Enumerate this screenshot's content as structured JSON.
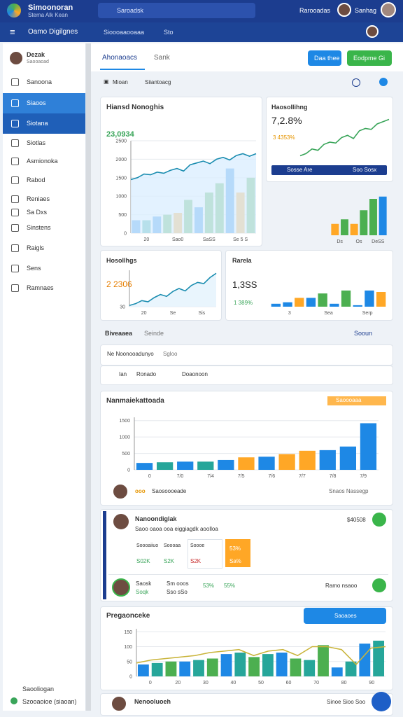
{
  "header": {
    "app_title": "Simoonoran",
    "app_subtitle": "Stema Alk Kean",
    "search": "Saroadsk",
    "user_menu": "Rarooadas",
    "user_name": "Sanhag"
  },
  "nav": {
    "title": "Oamo Digilgnes",
    "menu": "Sioooaaooaaa",
    "link": "Sto"
  },
  "sidebar": {
    "profile_name": "Dezak",
    "profile_role": "Saooaoad",
    "items": [
      "Sanoona",
      "Siaoos",
      "Siotana",
      "Siotlas",
      "Asmionoka",
      "Rabod",
      "Reniaes",
      "Sa Dxs",
      "Sinstens",
      "Raigls",
      "Sens",
      "Ramnaes"
    ],
    "footer": [
      "Saooliogan",
      "Szooaoioe (siaoan)"
    ]
  },
  "tabs": [
    "Ahonaoacs",
    "Sank"
  ],
  "buttons": [
    "Daa thee",
    "Eodpme Gi"
  ],
  "filters": [
    "Mioan",
    "Siiantoacg"
  ],
  "cards": [
    {
      "title": "Hiansd Nonoghis",
      "value": "23,0934",
      "chart": {
        "ylim": [
          0,
          2500
        ],
        "yticks": [
          0,
          500,
          1000,
          1500,
          2000,
          2500
        ],
        "xlabels": [
          "20",
          "Sao0",
          "SaSS",
          "Se 5 S"
        ],
        "line": [
          1450,
          1500,
          1600,
          1580,
          1650,
          1620,
          1700,
          1750,
          1680,
          1850,
          1900,
          1950,
          1880,
          2000,
          2050,
          1980,
          2100,
          2150,
          2080,
          2150
        ],
        "line_color": "#1b8db0",
        "area": "#dcefff",
        "bars": [
          350,
          350,
          450,
          500,
          550,
          900,
          700,
          1100,
          1350,
          1750,
          1100,
          1500
        ],
        "bar_colors": [
          "#1e88e5",
          "#26a69a",
          "#1e88e5",
          "#4caf50",
          "#ffa726",
          "#4caf50",
          "#1e88e5",
          "#4caf50",
          "#4caf50",
          "#1e88e5",
          "#ffa726",
          "#4caf50"
        ]
      }
    },
    {
      "title": "Haosollihng",
      "value": "7,2.8%",
      "change": "3 4353%",
      "footer": [
        "Sosse Are",
        "Soo Sosx"
      ],
      "chart": {
        "ylim": [
          0,
          100
        ],
        "line": [
          10,
          15,
          25,
          22,
          35,
          40,
          38,
          50,
          55,
          48,
          65,
          70,
          68,
          80,
          85,
          90
        ],
        "line_color": "#3aa55a"
      },
      "bars_chart": {
        "ylim": [
          0,
          100
        ],
        "xlabels": [
          "Ds",
          "Os",
          "DeSS"
        ],
        "bars": [
          25,
          35,
          25,
          55,
          80,
          85
        ],
        "bar_colors": [
          "#ffa726",
          "#4caf50",
          "#ffa726",
          "#4caf50",
          "#4caf50",
          "#1e88e5"
        ]
      }
    },
    {
      "title": "Hosollhgs",
      "value": "2 2306",
      "chart": {
        "ylim": [
          30,
          90
        ],
        "yticks": [
          30
        ],
        "xlabels": [
          "20",
          "Se",
          "Sis"
        ],
        "line": [
          32,
          35,
          40,
          38,
          45,
          50,
          47,
          55,
          60,
          56,
          65,
          70,
          68,
          78,
          85
        ],
        "line_color": "#1b8db0",
        "area": "#e3f2fd"
      }
    },
    {
      "title": "Rarela",
      "value": "1,3SS",
      "change": "1 389%",
      "chart": {
        "ylim": [
          0,
          100
        ],
        "xlabels": [
          "3",
          "Sea",
          "Serp"
        ],
        "bars": [
          10,
          15,
          30,
          30,
          45,
          10,
          55,
          5,
          55,
          50
        ],
        "bar_colors": [
          "#1e88e5",
          "#1e88e5",
          "#ffa726",
          "#1e88e5",
          "#4caf50",
          "#1e88e5",
          "#4caf50",
          "#1e88e5",
          "#1e88e5",
          "#ffa726"
        ]
      }
    }
  ],
  "section": {
    "title": "Biveaaea",
    "subtitle": "Seinde",
    "action": "Sooun",
    "breadcrumb": "Ne Noonooadunyo",
    "breadcrumb_sub": "Sgloo",
    "tools": [
      "Ian",
      "Ronado",
      "Doaonoon"
    ]
  },
  "panel": {
    "title": "Nanmaiekattoada",
    "tag": "Saoooaaa",
    "badge": "ooo",
    "footer": "Saosoooeade",
    "footer_right": "Snaos Nassegp",
    "chart": {
      "ylim": [
        0,
        1600
      ],
      "yticks": [
        0,
        500,
        1000,
        1500
      ],
      "xlabels": [
        "0",
        "7/0",
        "7/4",
        "7/5",
        "7/6",
        "7/7",
        "7/8",
        "7/9"
      ],
      "bars": [
        210,
        230,
        250,
        250,
        300,
        380,
        400,
        480,
        580,
        600,
        710,
        1420
      ],
      "bar_colors": [
        "#1e88e5",
        "#26a69a",
        "#1e88e5",
        "#26a69a",
        "#1e88e5",
        "#ffa726",
        "#1e88e5",
        "#ffa726",
        "#ffa726",
        "#1e88e5",
        "#1e88e5",
        "#1e88e5"
      ]
    }
  },
  "list": {
    "items": [
      {
        "title": "Nanoondiglak",
        "subtitle": "Saoo oaoa ooa eiggiagdk aoolloa",
        "amount": "$40508",
        "stats": [
          {
            "label": "Soooaiiuo",
            "value": "S02K"
          },
          {
            "label": "Soooaa",
            "value": "S2K"
          },
          {
            "label": "Soooe",
            "value": "S2K"
          },
          {
            "label": "53%",
            "value": "Sa%"
          }
        ]
      },
      {
        "cells": [
          "Saosk",
          "Soqk",
          "Sm ooos",
          "Sso sSo",
          "53%",
          "55%"
        ],
        "amount": "Ramo nsaoo"
      }
    ]
  },
  "trends": {
    "title": "Pregaonceke",
    "button": "Saoaoes",
    "chart": {
      "ylim": [
        0,
        160
      ],
      "yticks": [
        0,
        50,
        100,
        150
      ],
      "xlabels": [
        "0",
        "20",
        "30",
        "40",
        "50",
        "60",
        "70",
        "80",
        "90"
      ],
      "bars": [
        40,
        45,
        50,
        50,
        55,
        60,
        75,
        80,
        65,
        75,
        80,
        60,
        55,
        105,
        30,
        50,
        110,
        120
      ],
      "bar_colors": [
        "#1e88e5",
        "#26a69a",
        "#4caf50",
        "#1e88e5",
        "#26a69a",
        "#4caf50",
        "#1e88e5",
        "#26a69a",
        "#4caf50",
        "#26a69a",
        "#1e88e5",
        "#4caf50",
        "#26a69a",
        "#4caf50",
        "#1e88e5",
        "#26a69a",
        "#1e88e5",
        "#26a69a"
      ],
      "line": [
        45,
        55,
        60,
        65,
        70,
        80,
        85,
        90,
        70,
        85,
        90,
        70,
        100,
        100,
        90,
        40,
        95,
        100
      ],
      "line_color": "#c9b43a"
    }
  },
  "footer_card": {
    "title": "Nenooluoeh",
    "meta": "Sinoe Sioo Soo"
  }
}
